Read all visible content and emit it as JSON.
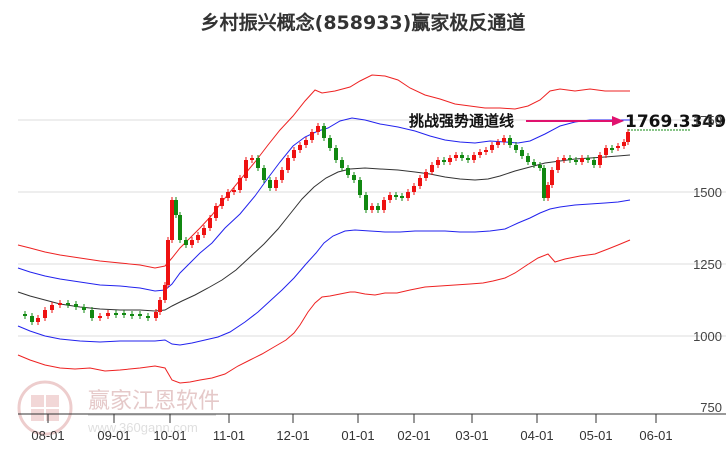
{
  "title": "乡村振兴概念(858933)赢家极反通道",
  "annotation": {
    "label": "挑战强势通道线",
    "value": "1769.3349",
    "arrow_color": "#e0126e"
  },
  "watermark": {
    "brand": "赢家江恩软件",
    "url": "www.360gann.com",
    "seal": [
      "江",
      "赢",
      "恩",
      "家"
    ]
  },
  "colors": {
    "outer_band": "#ee2222",
    "inner_band": "#2222ee",
    "mid_line": "#222222",
    "up_candle": "#ee1111",
    "down_candle": "#118811",
    "grid": "#dddddd"
  },
  "chart_data": {
    "type": "candlestick_with_bands",
    "title": "乡村振兴概念(858933)赢家极反通道",
    "xlabel": "",
    "ylabel": "",
    "x_ticks": [
      "08-01",
      "09-01",
      "10-01",
      "11-01",
      "12-01",
      "01-01",
      "02-01",
      "03-01",
      "04-01",
      "05-01",
      "06-01"
    ],
    "y_ticks": [
      750,
      1000,
      1250,
      1500,
      1750
    ],
    "ylim": [
      750,
      1850
    ],
    "grid": "horizontal",
    "annotation": {
      "text": "挑战强势通道线",
      "value": 1769.3349
    },
    "series": [
      {
        "name": "outer_upper_band",
        "color": "red",
        "points": [
          [
            "07-20",
            1330
          ],
          [
            "08-15",
            1290
          ],
          [
            "09-15",
            1250
          ],
          [
            "10-05",
            1270
          ],
          [
            "10-25",
            1440
          ],
          [
            "11-15",
            1580
          ],
          [
            "12-01",
            1720
          ],
          [
            "12-15",
            1830
          ],
          [
            "01-01",
            1870
          ],
          [
            "01-20",
            1870
          ],
          [
            "02-15",
            1820
          ],
          [
            "03-01",
            1800
          ],
          [
            "03-20",
            1790
          ],
          [
            "04-01",
            1800
          ],
          [
            "04-20",
            1870
          ],
          [
            "05-10",
            1880
          ],
          [
            "05-25",
            1875
          ]
        ]
      },
      {
        "name": "inner_upper_band",
        "color": "blue",
        "points": [
          [
            "07-20",
            1270
          ],
          [
            "08-15",
            1230
          ],
          [
            "09-15",
            1200
          ],
          [
            "10-05",
            1220
          ],
          [
            "10-25",
            1380
          ],
          [
            "11-15",
            1520
          ],
          [
            "12-01",
            1630
          ],
          [
            "12-15",
            1740
          ],
          [
            "01-01",
            1780
          ],
          [
            "01-20",
            1775
          ],
          [
            "02-15",
            1745
          ],
          [
            "03-01",
            1730
          ],
          [
            "03-20",
            1730
          ],
          [
            "04-01",
            1740
          ],
          [
            "04-20",
            1765
          ],
          [
            "05-10",
            1770
          ],
          [
            "05-25",
            1772
          ]
        ]
      },
      {
        "name": "mid_line",
        "color": "black",
        "points": [
          [
            "07-20",
            1180
          ],
          [
            "08-15",
            1140
          ],
          [
            "09-15",
            1110
          ],
          [
            "10-05",
            1100
          ],
          [
            "10-25",
            1170
          ],
          [
            "11-15",
            1280
          ],
          [
            "12-01",
            1420
          ],
          [
            "12-15",
            1520
          ],
          [
            "01-01",
            1570
          ],
          [
            "01-20",
            1580
          ],
          [
            "02-15",
            1570
          ],
          [
            "03-01",
            1540
          ],
          [
            "03-20",
            1555
          ],
          [
            "04-01",
            1600
          ],
          [
            "04-20",
            1610
          ],
          [
            "05-10",
            1620
          ],
          [
            "05-25",
            1640
          ]
        ]
      },
      {
        "name": "inner_lower_band",
        "color": "blue",
        "points": [
          [
            "07-20",
            1060
          ],
          [
            "08-15",
            1020
          ],
          [
            "09-15",
            1010
          ],
          [
            "10-05",
            990
          ],
          [
            "10-25",
            1000
          ],
          [
            "11-15",
            1050
          ],
          [
            "12-01",
            1150
          ],
          [
            "12-15",
            1260
          ],
          [
            "01-01",
            1320
          ],
          [
            "01-20",
            1330
          ],
          [
            "02-15",
            1330
          ],
          [
            "03-01",
            1330
          ],
          [
            "03-20",
            1340
          ],
          [
            "04-01",
            1400
          ],
          [
            "04-20",
            1460
          ],
          [
            "05-10",
            1470
          ],
          [
            "05-25",
            1490
          ]
        ]
      },
      {
        "name": "outer_lower_band",
        "color": "red",
        "points": [
          [
            "07-20",
            970
          ],
          [
            "08-15",
            920
          ],
          [
            "09-15",
            910
          ],
          [
            "10-05",
            860
          ],
          [
            "10-25",
            870
          ],
          [
            "11-15",
            920
          ],
          [
            "12-01",
            960
          ],
          [
            "12-15",
            1060
          ],
          [
            "01-01",
            1190
          ],
          [
            "01-20",
            1200
          ],
          [
            "02-15",
            1210
          ],
          [
            "03-01",
            1220
          ],
          [
            "03-20",
            1240
          ],
          [
            "04-01",
            1310
          ],
          [
            "04-20",
            1290
          ],
          [
            "05-10",
            1310
          ],
          [
            "05-25",
            1340
          ]
        ]
      },
      {
        "name": "close_approx",
        "color": "candles",
        "points": [
          [
            "07-20",
            1080
          ],
          [
            "08-01",
            1060
          ],
          [
            "08-10",
            1120
          ],
          [
            "08-25",
            1100
          ],
          [
            "09-05",
            1080
          ],
          [
            "09-20",
            1090
          ],
          [
            "09-28",
            1110
          ],
          [
            "10-05",
            1300
          ],
          [
            "10-10",
            1480
          ],
          [
            "10-15",
            1350
          ],
          [
            "10-25",
            1420
          ],
          [
            "11-01",
            1500
          ],
          [
            "11-10",
            1620
          ],
          [
            "11-20",
            1580
          ],
          [
            "11-28",
            1520
          ],
          [
            "12-05",
            1640
          ],
          [
            "12-15",
            1700
          ],
          [
            "12-20",
            1640
          ],
          [
            "12-28",
            1560
          ],
          [
            "01-05",
            1510
          ],
          [
            "01-10",
            1450
          ],
          [
            "01-20",
            1460
          ],
          [
            "02-01",
            1520
          ],
          [
            "02-10",
            1600
          ],
          [
            "02-20",
            1630
          ],
          [
            "03-01",
            1620
          ],
          [
            "03-10",
            1680
          ],
          [
            "03-20",
            1650
          ],
          [
            "03-28",
            1600
          ],
          [
            "04-03",
            1480
          ],
          [
            "04-08",
            1600
          ],
          [
            "04-20",
            1630
          ],
          [
            "05-01",
            1600
          ],
          [
            "05-10",
            1660
          ],
          [
            "05-20",
            1690
          ],
          [
            "05-25",
            1769
          ]
        ]
      }
    ]
  }
}
